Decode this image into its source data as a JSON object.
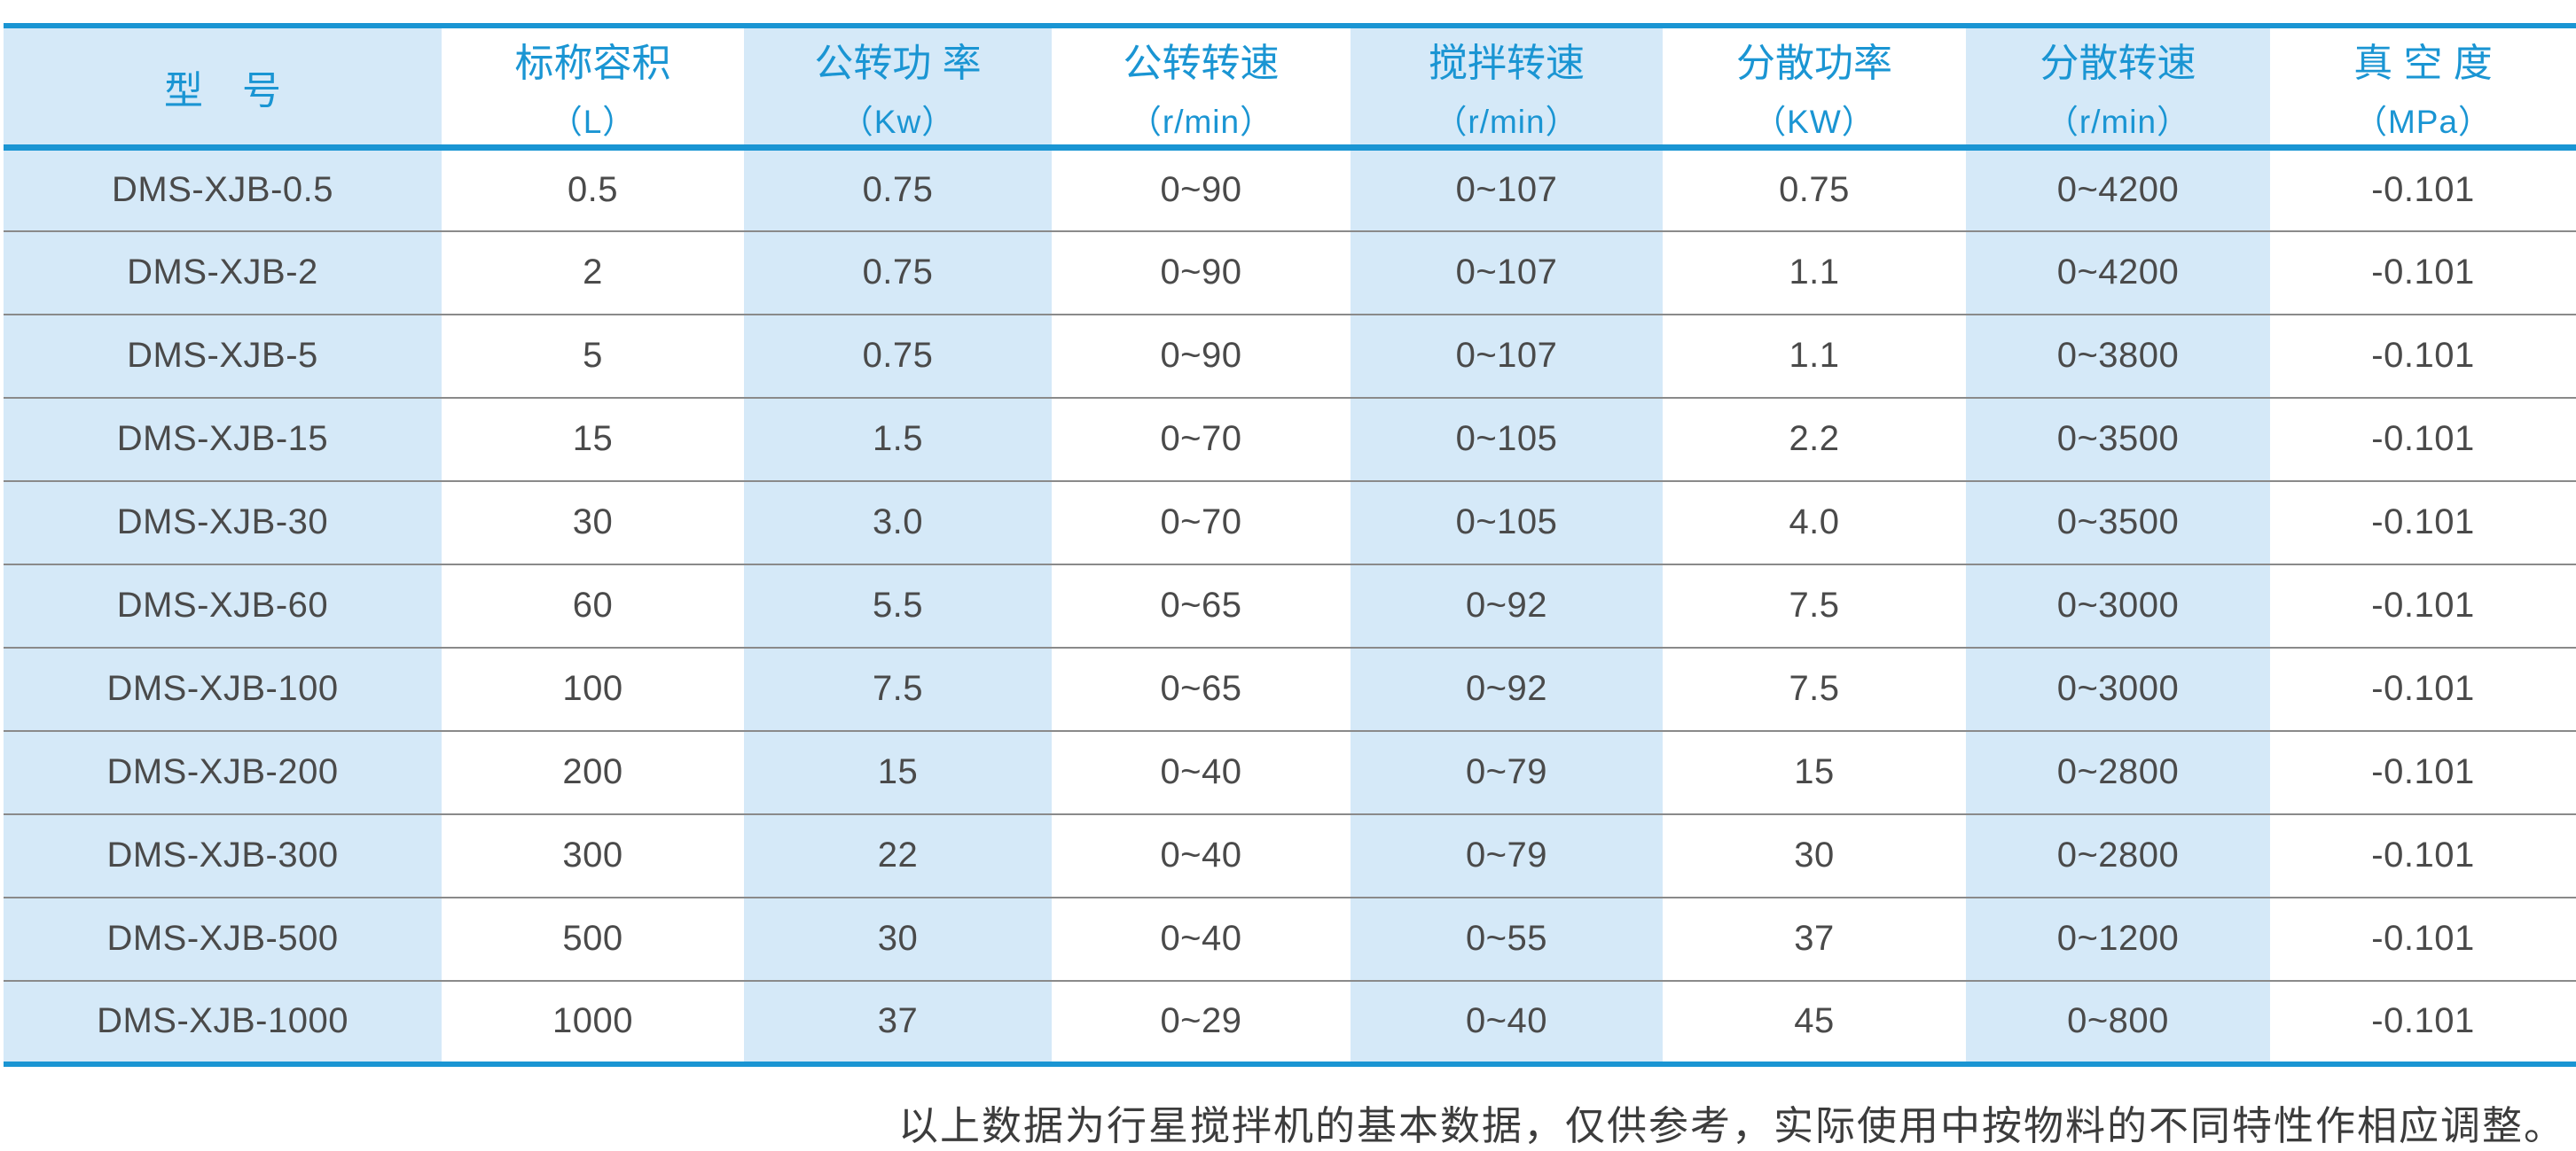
{
  "colors": {
    "accent": "#1a95d3",
    "stripe": "#d5e9f8",
    "body_text": "#4a4a4a",
    "row_divider": "#8a8a8a"
  },
  "table": {
    "columns": [
      {
        "title": "型　号",
        "unit": ""
      },
      {
        "title": "标称容积",
        "unit": "（L）"
      },
      {
        "title": "公转功 率",
        "unit": "（Kw）"
      },
      {
        "title": "公转转速",
        "unit": "（r/min）"
      },
      {
        "title": "搅拌转速",
        "unit": "（r/min）"
      },
      {
        "title": "分散功率",
        "unit": "（KW）"
      },
      {
        "title": "分散转速",
        "unit": "（r/min）"
      },
      {
        "title": "真 空 度",
        "unit": "（MPa）"
      }
    ],
    "rows": [
      [
        "DMS-XJB-0.5",
        "0.5",
        "0.75",
        "0~90",
        "0~107",
        "0.75",
        "0~4200",
        "-0.101"
      ],
      [
        "DMS-XJB-2",
        "2",
        "0.75",
        "0~90",
        "0~107",
        "1.1",
        "0~4200",
        "-0.101"
      ],
      [
        "DMS-XJB-5",
        "5",
        "0.75",
        "0~90",
        "0~107",
        "1.1",
        "0~3800",
        "-0.101"
      ],
      [
        "DMS-XJB-15",
        "15",
        "1.5",
        "0~70",
        "0~105",
        "2.2",
        "0~3500",
        "-0.101"
      ],
      [
        "DMS-XJB-30",
        "30",
        "3.0",
        "0~70",
        "0~105",
        "4.0",
        "0~3500",
        "-0.101"
      ],
      [
        "DMS-XJB-60",
        "60",
        "5.5",
        "0~65",
        "0~92",
        "7.5",
        "0~3000",
        "-0.101"
      ],
      [
        "DMS-XJB-100",
        "100",
        "7.5",
        "0~65",
        "0~92",
        "7.5",
        "0~3000",
        "-0.101"
      ],
      [
        "DMS-XJB-200",
        "200",
        "15",
        "0~40",
        "0~79",
        "15",
        "0~2800",
        "-0.101"
      ],
      [
        "DMS-XJB-300",
        "300",
        "22",
        "0~40",
        "0~79",
        "30",
        "0~2800",
        "-0.101"
      ],
      [
        "DMS-XJB-500",
        "500",
        "30",
        "0~40",
        "0~55",
        "37",
        "0~1200",
        "-0.101"
      ],
      [
        "DMS-XJB-1000",
        "1000",
        "37",
        "0~29",
        "0~40",
        "45",
        "0~800",
        "-0.101"
      ]
    ]
  },
  "footer": {
    "note": "以上数据为行星搅拌机的基本数据，仅供参考，实际使用中按物料的不同特性作相应调整。"
  }
}
